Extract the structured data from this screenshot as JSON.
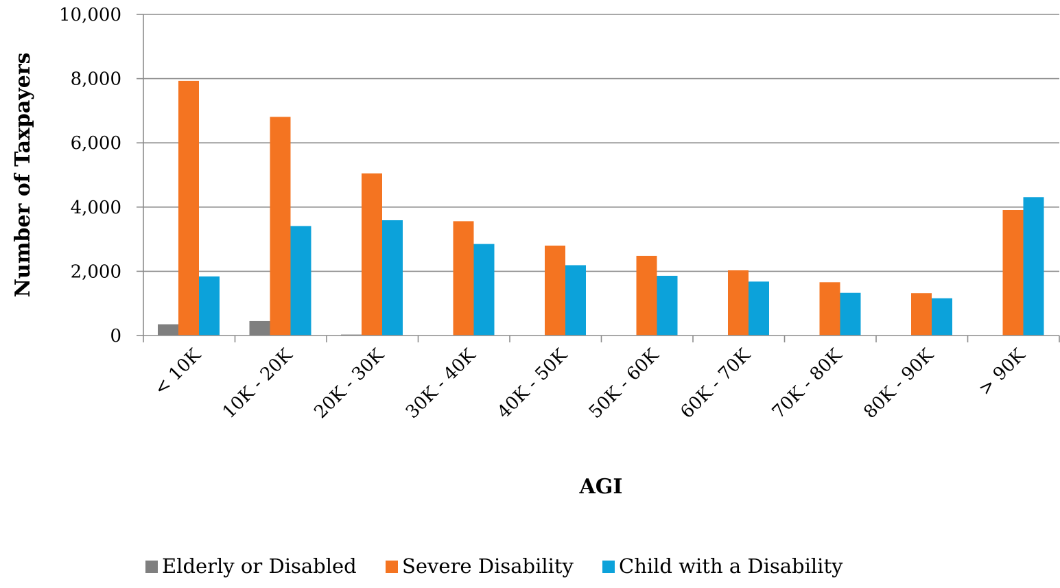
{
  "chart_data": {
    "type": "bar",
    "title": "",
    "xlabel": "AGI",
    "ylabel": "Number of Taxpayers",
    "ylim": [
      0,
      10000
    ],
    "yticks": [
      0,
      2000,
      4000,
      6000,
      8000,
      10000
    ],
    "ytick_labels": [
      "0",
      "2,000",
      "4,000",
      "6,000",
      "8,000",
      "10,000"
    ],
    "grid": true,
    "legend_position": "bottom",
    "categories": [
      "< 10K",
      "10K - 20K",
      "20K - 30K",
      "30K - 40K",
      "40K - 50K",
      "50K - 60K",
      "60K - 70K",
      "70K - 80K",
      "80K - 90K",
      "> 90K"
    ],
    "series": [
      {
        "name": "Elderly or Disabled",
        "color": "#7f7f7f",
        "values": [
          350,
          450,
          30,
          0,
          0,
          0,
          0,
          0,
          0,
          0
        ]
      },
      {
        "name": "Severe Disability",
        "color": "#f47421",
        "values": [
          7930,
          6810,
          5050,
          3560,
          2800,
          2480,
          2030,
          1660,
          1320,
          3910
        ]
      },
      {
        "name": "Child with a Disability",
        "color": "#0ca2da",
        "values": [
          1840,
          3410,
          3590,
          2850,
          2190,
          1860,
          1680,
          1330,
          1160,
          4310
        ]
      }
    ]
  }
}
